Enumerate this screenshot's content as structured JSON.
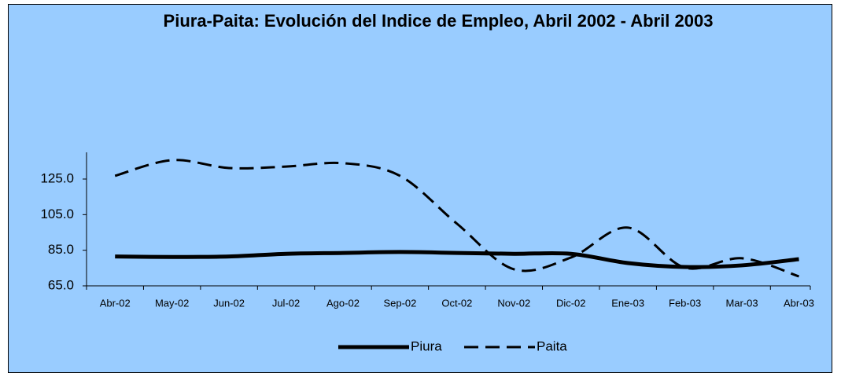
{
  "chart_data": {
    "type": "line",
    "title": "Piura-Paita: Evolución del Indice de Empleo, Abril 2002 - Abril 2003",
    "categories": [
      "Abr-02",
      "May-02",
      "Jun-02",
      "Jul-02",
      "Ago-02",
      "Sep-02",
      "Oct-02",
      "Nov-02",
      "Dic-02",
      "Ene-03",
      "Feb-03",
      "Mar-03",
      "Abr-03"
    ],
    "series": [
      {
        "name": "Piura",
        "color": "#000000",
        "style": "solid",
        "values": [
          81.5,
          81.2,
          81.5,
          83,
          83.5,
          84,
          83.5,
          83,
          83,
          77.8,
          75.6,
          76.5,
          80
        ]
      },
      {
        "name": "Paita",
        "color": "#000000",
        "style": "dashed",
        "values": [
          126.8,
          135.6,
          131.2,
          132,
          133.9,
          126.8,
          99.9,
          74.3,
          80.9,
          97.7,
          75.2,
          80.5,
          70.3
        ]
      }
    ],
    "ylim": [
      65,
      140
    ],
    "yticks": [
      {
        "value": 65,
        "label": "65.0"
      },
      {
        "value": 85,
        "label": "85.0"
      },
      {
        "value": 105,
        "label": "105.0"
      },
      {
        "value": 125,
        "label": "125.0"
      }
    ],
    "legend": "bottom"
  }
}
